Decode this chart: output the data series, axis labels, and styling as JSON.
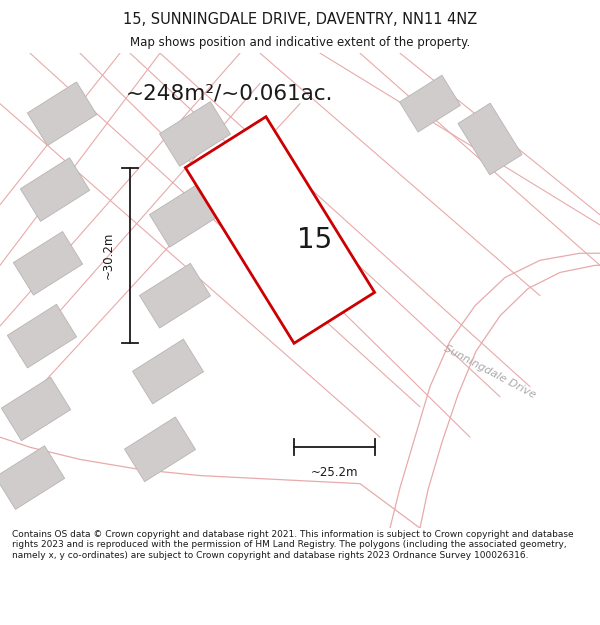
{
  "title_line1": "15, SUNNINGDALE DRIVE, DAVENTRY, NN11 4NZ",
  "title_line2": "Map shows position and indicative extent of the property.",
  "area_text": "~248m²/~0.061ac.",
  "label_15": "15",
  "dim_width": "~25.2m",
  "dim_height": "~30.2m",
  "street_label": "Sunningdale Drive",
  "footer_text": "Contains OS data © Crown copyright and database right 2021. This information is subject to Crown copyright and database rights 2023 and is reproduced with the permission of HM Land Registry. The polygons (including the associated geometry, namely x, y co-ordinates) are subject to Crown copyright and database rights 2023 Ordnance Survey 100026316.",
  "bg_color": "#ffffff",
  "map_bg_color": "#f7f2f2",
  "plot_color_red": "#cc0000",
  "plot_fill": "#ffffff",
  "building_color": "#d0cccc",
  "building_edge": "#b8b4b4",
  "road_line_color": "#e8aaaa",
  "dim_line_color": "#1a1a1a",
  "text_color": "#1a1a1a",
  "figsize": [
    6.0,
    6.25
  ],
  "dpi": 100
}
